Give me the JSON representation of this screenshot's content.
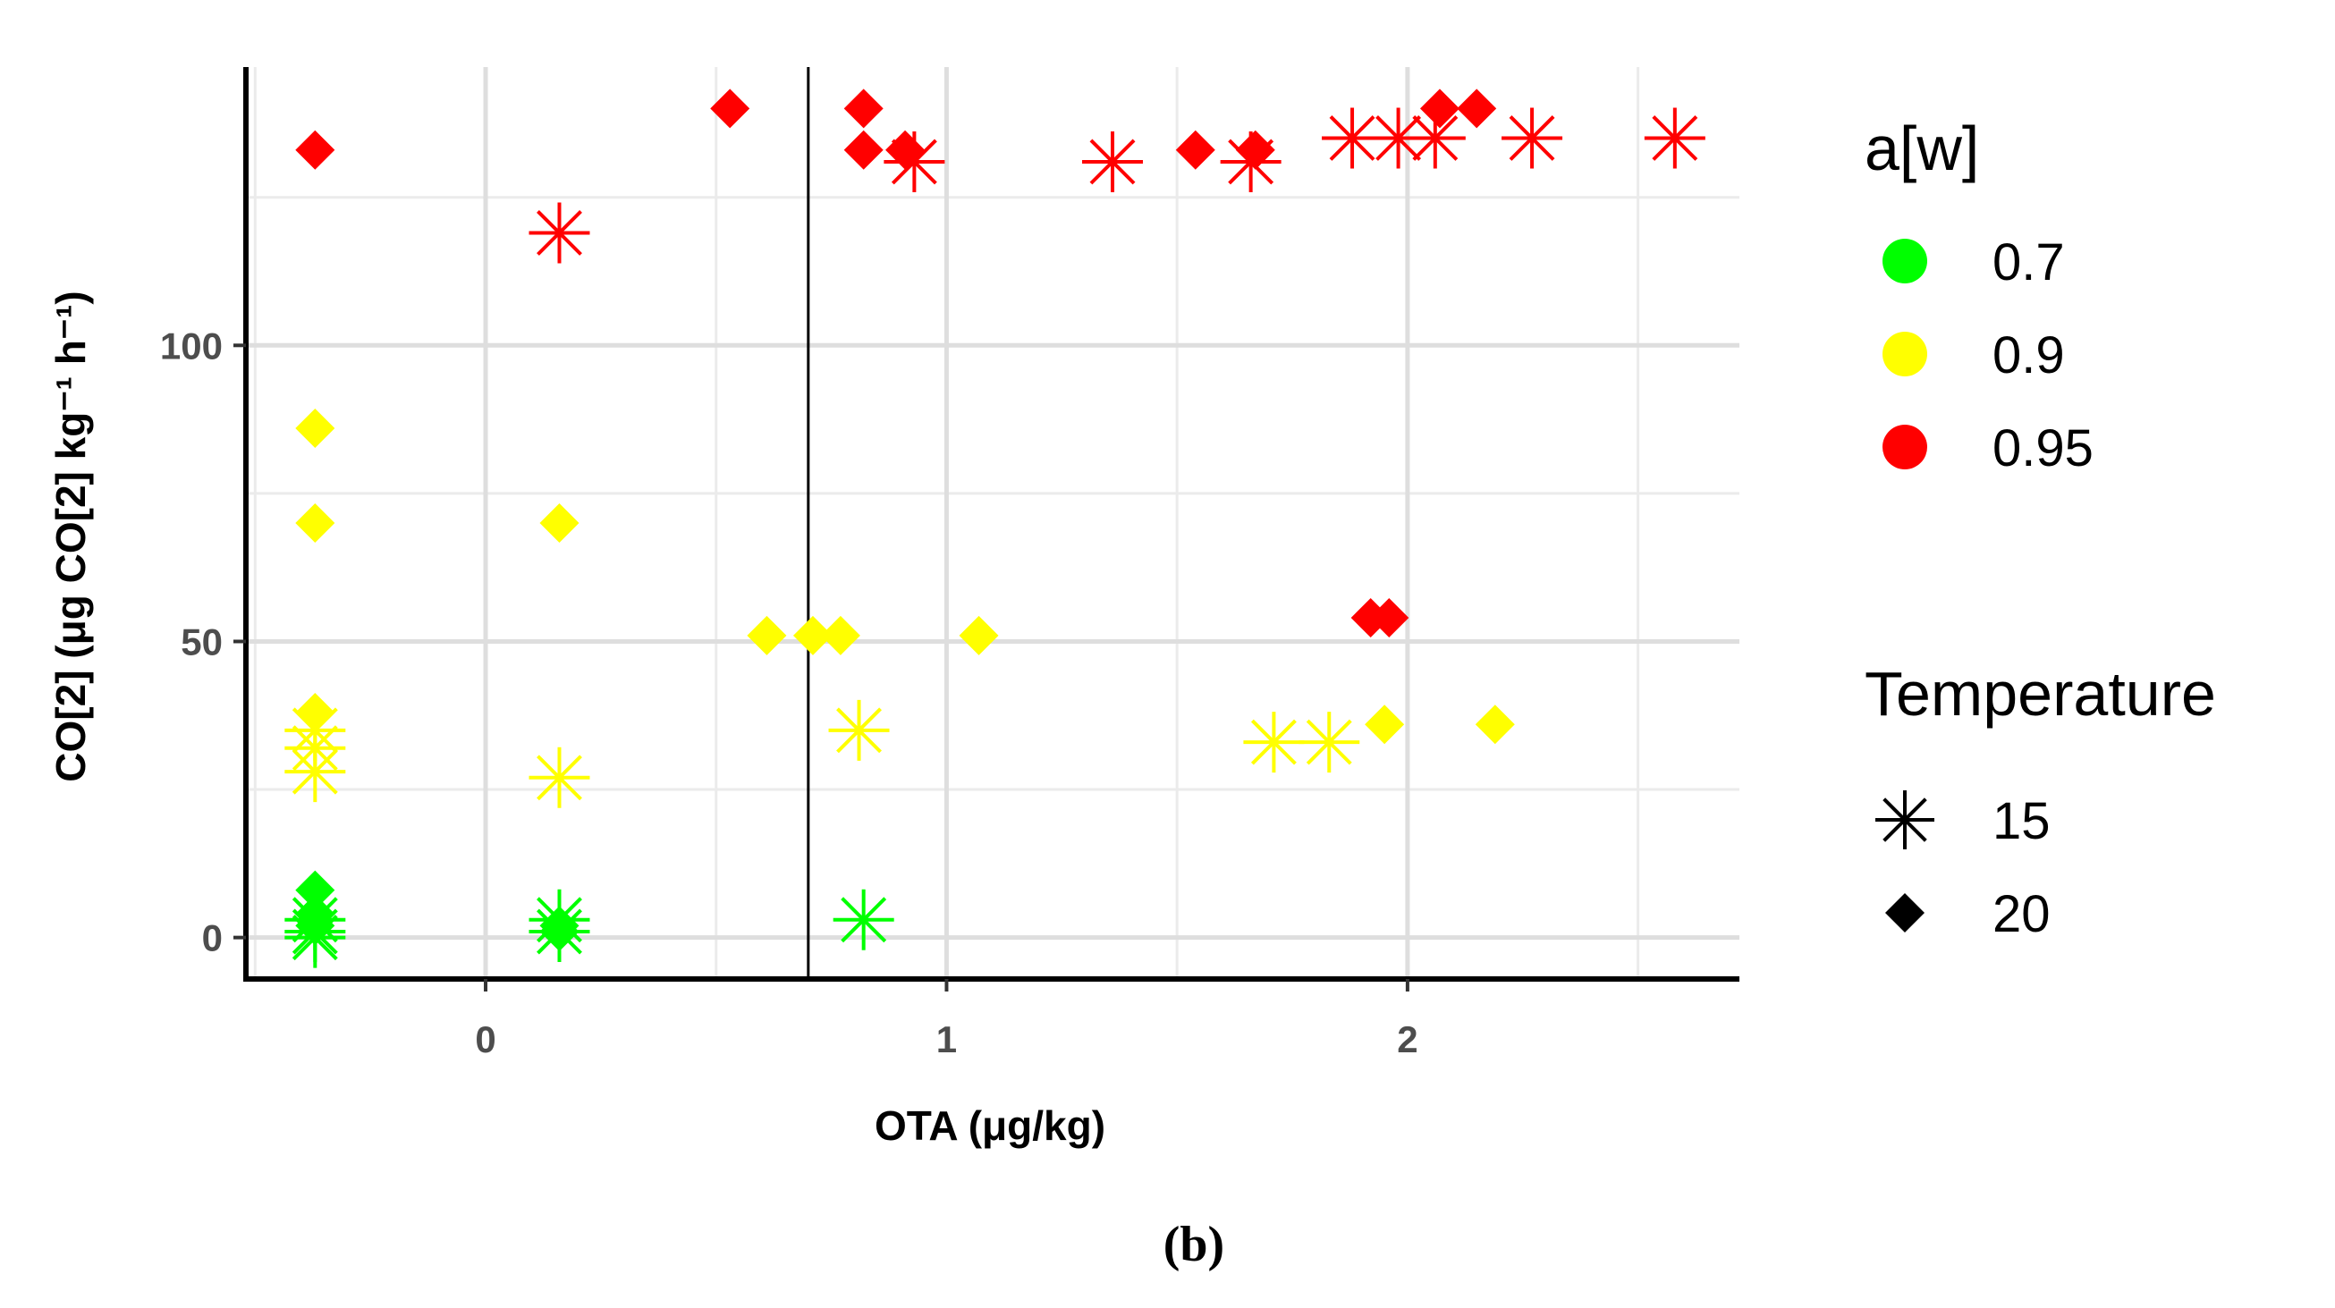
{
  "chart_data": {
    "type": "scatter",
    "title": "",
    "xlabel": "OTA (μg/kg)",
    "ylabel": "CO[2] (μg CO[2] kg⁻¹ h⁻¹)",
    "xlim": [
      -0.52,
      2.72
    ],
    "ylim": [
      -7,
      147
    ],
    "x_ticks": [
      0,
      1,
      2
    ],
    "x_tick_labels": [
      "0",
      "1",
      "2"
    ],
    "y_ticks": [
      0,
      50,
      100
    ],
    "y_tick_labels": [
      "0",
      "50",
      "100"
    ],
    "grid": true,
    "vline_x": 0.7,
    "caption": "(b)",
    "colors": {
      "0.7": "#00ff00",
      "0.9": "#ffff00",
      "0.95": "#ff0000"
    },
    "legend": {
      "color_title": "a[w]",
      "color_entries": [
        {
          "label": "0.7",
          "color": "#00ff00"
        },
        {
          "label": "0.9",
          "color": "#ffff00"
        },
        {
          "label": "0.95",
          "color": "#ff0000"
        }
      ],
      "shape_title": "Temperature",
      "shape_entries": [
        {
          "label": "15",
          "shape": "asterisk"
        },
        {
          "label": "20",
          "shape": "diamond"
        }
      ]
    },
    "series": [
      {
        "aw": "0.95",
        "temperature": "20",
        "shape": "diamond",
        "points": [
          [
            -0.37,
            133
          ],
          [
            0.53,
            140
          ],
          [
            0.82,
            140
          ],
          [
            0.82,
            133
          ],
          [
            0.91,
            133
          ],
          [
            1.54,
            133
          ],
          [
            1.67,
            133
          ],
          [
            1.92,
            54
          ],
          [
            1.96,
            54
          ],
          [
            2.07,
            140
          ],
          [
            2.15,
            140
          ]
        ]
      },
      {
        "aw": "0.95",
        "temperature": "15",
        "shape": "asterisk",
        "points": [
          [
            0.16,
            119
          ],
          [
            0.93,
            131
          ],
          [
            1.36,
            131
          ],
          [
            1.66,
            131
          ],
          [
            1.88,
            135
          ],
          [
            1.98,
            135
          ],
          [
            2.06,
            135
          ],
          [
            2.27,
            135
          ],
          [
            2.58,
            135
          ]
        ]
      },
      {
        "aw": "0.9",
        "temperature": "20",
        "shape": "diamond",
        "points": [
          [
            -0.37,
            86
          ],
          [
            -0.37,
            70
          ],
          [
            0.16,
            70
          ],
          [
            -0.37,
            38
          ],
          [
            0.61,
            51
          ],
          [
            0.71,
            51
          ],
          [
            0.77,
            51
          ],
          [
            1.07,
            51
          ],
          [
            1.95,
            36
          ],
          [
            2.19,
            36
          ]
        ]
      },
      {
        "aw": "0.9",
        "temperature": "15",
        "shape": "asterisk",
        "points": [
          [
            -0.37,
            35
          ],
          [
            -0.37,
            32
          ],
          [
            -0.37,
            28
          ],
          [
            0.16,
            27
          ],
          [
            0.81,
            35
          ],
          [
            1.71,
            33
          ],
          [
            1.83,
            33
          ]
        ]
      },
      {
        "aw": "0.7",
        "temperature": "20",
        "shape": "diamond",
        "points": [
          [
            -0.37,
            8
          ],
          [
            -0.37,
            4
          ],
          [
            -0.37,
            2
          ],
          [
            0.16,
            1
          ],
          [
            0.16,
            2
          ]
        ]
      },
      {
        "aw": "0.7",
        "temperature": "15",
        "shape": "asterisk",
        "points": [
          [
            -0.37,
            3
          ],
          [
            -0.37,
            1
          ],
          [
            -0.37,
            0
          ],
          [
            0.16,
            3
          ],
          [
            0.16,
            1
          ],
          [
            0.82,
            3
          ]
        ]
      }
    ]
  }
}
